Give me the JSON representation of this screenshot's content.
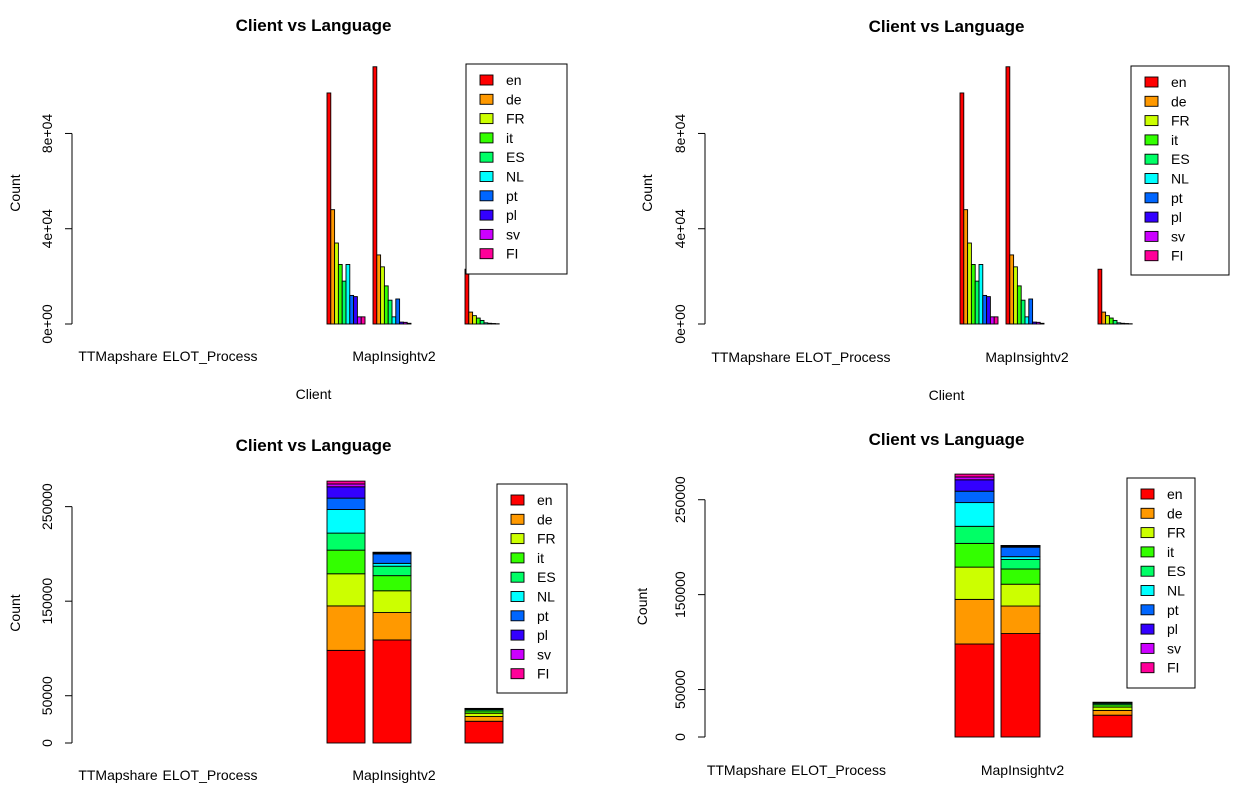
{
  "series_colors": {
    "en": "#FF0000",
    "de": "#FF9900",
    "FR": "#CCFF00",
    "it": "#33FF00",
    "ES": "#00FF66",
    "NL": "#00FFFF",
    "pt": "#0066FF",
    "pl": "#3300FF",
    "sv": "#CC00FF",
    "FI": "#FF0099"
  },
  "chart_data": [
    {
      "type": "bar",
      "mode": "grouped",
      "title": "Client vs Language",
      "xlabel": "Client",
      "ylabel": "Count",
      "ylim": [
        0,
        110000
      ],
      "y_ticks": [
        0,
        40000,
        80000
      ],
      "y_tick_labels": [
        "0e+00",
        "4e+04",
        "8e+04"
      ],
      "categories": [
        "TTMapshare",
        "",
        "ELOT_Process",
        "",
        "",
        "",
        "MapInsightv2",
        "",
        "",
        ""
      ],
      "legend_position": "top-right",
      "series": [
        {
          "name": "en",
          "values": [
            0,
            0,
            0,
            0,
            0,
            97000,
            108000,
            0,
            23000,
            0
          ]
        },
        {
          "name": "de",
          "values": [
            0,
            0,
            0,
            0,
            0,
            48000,
            29000,
            0,
            5000,
            0
          ]
        },
        {
          "name": "FR",
          "values": [
            0,
            0,
            0,
            0,
            0,
            34000,
            24000,
            0,
            3500,
            0
          ]
        },
        {
          "name": "it",
          "values": [
            0,
            0,
            0,
            0,
            0,
            25000,
            16000,
            0,
            2500,
            0
          ]
        },
        {
          "name": "ES",
          "values": [
            0,
            0,
            0,
            0,
            0,
            18000,
            10000,
            0,
            1500,
            0
          ]
        },
        {
          "name": "NL",
          "values": [
            0,
            0,
            0,
            0,
            0,
            25000,
            3000,
            0,
            500,
            0
          ]
        },
        {
          "name": "pt",
          "values": [
            0,
            0,
            0,
            0,
            0,
            12000,
            10500,
            0,
            300,
            0
          ]
        },
        {
          "name": "pl",
          "values": [
            0,
            0,
            0,
            0,
            0,
            11500,
            800,
            0,
            200,
            0
          ]
        },
        {
          "name": "sv",
          "values": [
            0,
            0,
            0,
            0,
            0,
            3000,
            700,
            0,
            100,
            0
          ]
        },
        {
          "name": "FI",
          "values": [
            0,
            0,
            0,
            0,
            0,
            3000,
            300,
            0,
            0,
            0
          ]
        }
      ]
    },
    {
      "type": "bar",
      "mode": "grouped",
      "title": "Client vs Language",
      "xlabel": "Client",
      "ylabel": "Count",
      "ylim": [
        0,
        110000
      ],
      "y_ticks": [
        0,
        40000,
        80000
      ],
      "y_tick_labels": [
        "0e+00",
        "4e+04",
        "8e+04"
      ],
      "categories": [
        "TTMapshare",
        "",
        "ELOT_Process",
        "",
        "",
        "",
        "MapInsightv2",
        "",
        "",
        ""
      ],
      "legend_position": "top-right",
      "series": [
        {
          "name": "en",
          "values": [
            0,
            0,
            0,
            0,
            0,
            97000,
            108000,
            0,
            23000,
            0
          ]
        },
        {
          "name": "de",
          "values": [
            0,
            0,
            0,
            0,
            0,
            48000,
            29000,
            0,
            5000,
            0
          ]
        },
        {
          "name": "FR",
          "values": [
            0,
            0,
            0,
            0,
            0,
            34000,
            24000,
            0,
            3500,
            0
          ]
        },
        {
          "name": "it",
          "values": [
            0,
            0,
            0,
            0,
            0,
            25000,
            16000,
            0,
            2500,
            0
          ]
        },
        {
          "name": "ES",
          "values": [
            0,
            0,
            0,
            0,
            0,
            18000,
            10000,
            0,
            1500,
            0
          ]
        },
        {
          "name": "NL",
          "values": [
            0,
            0,
            0,
            0,
            0,
            25000,
            3000,
            0,
            500,
            0
          ]
        },
        {
          "name": "pt",
          "values": [
            0,
            0,
            0,
            0,
            0,
            12000,
            10500,
            0,
            300,
            0
          ]
        },
        {
          "name": "pl",
          "values": [
            0,
            0,
            0,
            0,
            0,
            11500,
            800,
            0,
            200,
            0
          ]
        },
        {
          "name": "sv",
          "values": [
            0,
            0,
            0,
            0,
            0,
            3000,
            700,
            0,
            100,
            0
          ]
        },
        {
          "name": "FI",
          "values": [
            0,
            0,
            0,
            0,
            0,
            3000,
            300,
            0,
            0,
            0
          ]
        }
      ]
    },
    {
      "type": "bar",
      "mode": "stacked",
      "title": "Client vs Language",
      "xlabel": "",
      "ylabel": "Count",
      "ylim": [
        0,
        275000
      ],
      "y_ticks": [
        0,
        50000,
        150000,
        250000
      ],
      "y_tick_labels": [
        "0",
        "50000",
        "150000",
        "250000"
      ],
      "categories": [
        "TTMapshare",
        "",
        "ELOT_Process",
        "",
        "",
        "",
        "MapInsightv2",
        "",
        "",
        ""
      ],
      "legend_position": "top-right",
      "series": [
        {
          "name": "en",
          "values": [
            0,
            0,
            0,
            0,
            0,
            98000,
            109000,
            0,
            23000,
            0
          ]
        },
        {
          "name": "de",
          "values": [
            0,
            0,
            0,
            0,
            0,
            47000,
            29000,
            0,
            5000,
            0
          ]
        },
        {
          "name": "FR",
          "values": [
            0,
            0,
            0,
            0,
            0,
            34000,
            23000,
            0,
            3500,
            0
          ]
        },
        {
          "name": "it",
          "values": [
            0,
            0,
            0,
            0,
            0,
            25000,
            16000,
            0,
            2500,
            0
          ]
        },
        {
          "name": "ES",
          "values": [
            0,
            0,
            0,
            0,
            0,
            18000,
            10000,
            0,
            1500,
            0
          ]
        },
        {
          "name": "NL",
          "values": [
            0,
            0,
            0,
            0,
            0,
            25000,
            3000,
            0,
            500,
            0
          ]
        },
        {
          "name": "pt",
          "values": [
            0,
            0,
            0,
            0,
            0,
            12000,
            10000,
            0,
            300,
            0
          ]
        },
        {
          "name": "pl",
          "values": [
            0,
            0,
            0,
            0,
            0,
            12000,
            800,
            0,
            200,
            0
          ]
        },
        {
          "name": "sv",
          "values": [
            0,
            0,
            0,
            0,
            0,
            3000,
            700,
            0,
            100,
            0
          ]
        },
        {
          "name": "FI",
          "values": [
            0,
            0,
            0,
            0,
            0,
            3000,
            300,
            0,
            0,
            0
          ]
        }
      ]
    },
    {
      "type": "bar",
      "mode": "stacked",
      "title": "Client vs Language",
      "xlabel": "",
      "ylabel": "Count",
      "ylim": [
        0,
        275000
      ],
      "y_ticks": [
        0,
        50000,
        150000,
        250000
      ],
      "y_tick_labels": [
        "0",
        "50000",
        "150000",
        "250000"
      ],
      "categories": [
        "TTMapshare",
        "",
        "ELOT_Process",
        "",
        "",
        "",
        "MapInsightv2",
        "",
        "",
        ""
      ],
      "legend_position": "top-right",
      "series": [
        {
          "name": "en",
          "values": [
            0,
            0,
            0,
            0,
            0,
            98000,
            109000,
            0,
            23000,
            0
          ]
        },
        {
          "name": "de",
          "values": [
            0,
            0,
            0,
            0,
            0,
            47000,
            29000,
            0,
            5000,
            0
          ]
        },
        {
          "name": "FR",
          "values": [
            0,
            0,
            0,
            0,
            0,
            34000,
            23000,
            0,
            3500,
            0
          ]
        },
        {
          "name": "it",
          "values": [
            0,
            0,
            0,
            0,
            0,
            25000,
            16000,
            0,
            2500,
            0
          ]
        },
        {
          "name": "ES",
          "values": [
            0,
            0,
            0,
            0,
            0,
            18000,
            10000,
            0,
            1500,
            0
          ]
        },
        {
          "name": "NL",
          "values": [
            0,
            0,
            0,
            0,
            0,
            25000,
            3000,
            0,
            500,
            0
          ]
        },
        {
          "name": "pt",
          "values": [
            0,
            0,
            0,
            0,
            0,
            12000,
            10000,
            0,
            300,
            0
          ]
        },
        {
          "name": "pl",
          "values": [
            0,
            0,
            0,
            0,
            0,
            12000,
            800,
            0,
            200,
            0
          ]
        },
        {
          "name": "sv",
          "values": [
            0,
            0,
            0,
            0,
            0,
            3000,
            700,
            0,
            100,
            0
          ]
        },
        {
          "name": "FI",
          "values": [
            0,
            0,
            0,
            0,
            0,
            3000,
            300,
            0,
            0,
            0
          ]
        }
      ]
    }
  ]
}
